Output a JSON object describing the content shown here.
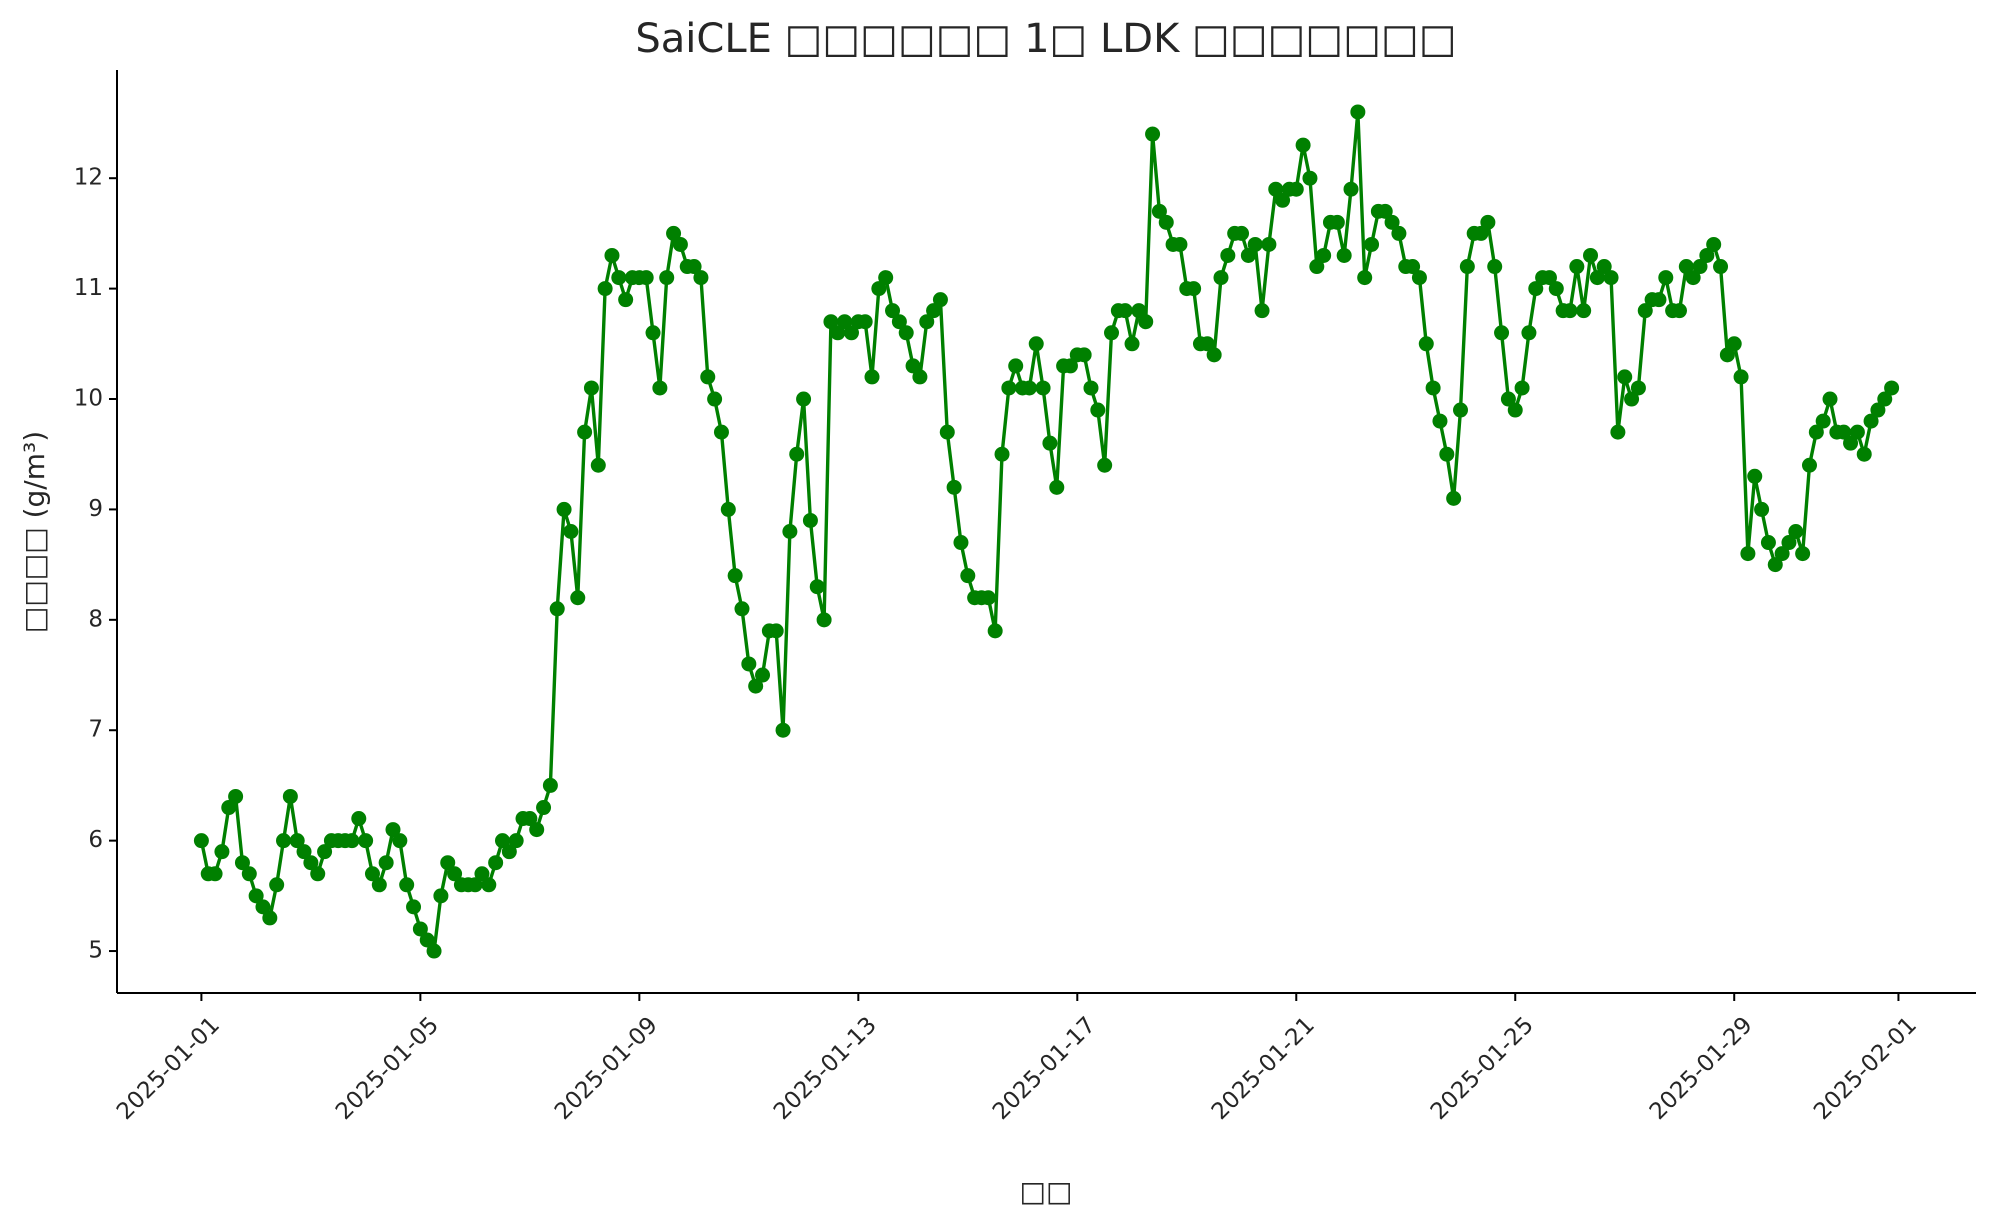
{
  "chart_data": {
    "type": "line",
    "title": "SaiCLE □□□□□□ 1□ LDK □□□□□□□",
    "xlabel": "□□",
    "ylabel": "□□□□ (g/m³)",
    "color": "#008000",
    "markers": true,
    "grid": false,
    "xlim": [
      "2024-12-30T11:00",
      "2025-02-02T10:00"
    ],
    "xticks": [
      "2025-01-01",
      "2025-01-05",
      "2025-01-09",
      "2025-01-13",
      "2025-01-17",
      "2025-01-21",
      "2025-01-25",
      "2025-01-29",
      "2025-02-01"
    ],
    "ylim": [
      4.62,
      12.98
    ],
    "yticks": [
      5,
      6,
      7,
      8,
      9,
      10,
      11,
      12
    ],
    "x": [
      "2025-01-01T00:00",
      "2025-01-01T03:00",
      "2025-01-01T06:00",
      "2025-01-01T09:00",
      "2025-01-01T12:00",
      "2025-01-01T15:00",
      "2025-01-01T18:00",
      "2025-01-01T21:00",
      "2025-01-02T00:00",
      "2025-01-02T03:00",
      "2025-01-02T06:00",
      "2025-01-02T09:00",
      "2025-01-02T12:00",
      "2025-01-02T15:00",
      "2025-01-02T18:00",
      "2025-01-02T21:00",
      "2025-01-03T00:00",
      "2025-01-03T03:00",
      "2025-01-03T06:00",
      "2025-01-03T09:00",
      "2025-01-03T12:00",
      "2025-01-03T15:00",
      "2025-01-03T18:00",
      "2025-01-03T21:00",
      "2025-01-04T00:00",
      "2025-01-04T03:00",
      "2025-01-04T06:00",
      "2025-01-04T09:00",
      "2025-01-04T12:00",
      "2025-01-04T15:00",
      "2025-01-04T18:00",
      "2025-01-04T21:00",
      "2025-01-05T00:00",
      "2025-01-05T03:00",
      "2025-01-05T06:00",
      "2025-01-05T09:00",
      "2025-01-05T12:00",
      "2025-01-05T15:00",
      "2025-01-05T18:00",
      "2025-01-05T21:00",
      "2025-01-06T00:00",
      "2025-01-06T03:00",
      "2025-01-06T06:00",
      "2025-01-06T09:00",
      "2025-01-06T12:00",
      "2025-01-06T15:00",
      "2025-01-06T18:00",
      "2025-01-06T21:00",
      "2025-01-07T00:00",
      "2025-01-07T03:00",
      "2025-01-07T06:00",
      "2025-01-07T09:00",
      "2025-01-07T12:00",
      "2025-01-07T15:00",
      "2025-01-07T18:00",
      "2025-01-07T21:00",
      "2025-01-08T00:00",
      "2025-01-08T03:00",
      "2025-01-08T06:00",
      "2025-01-08T09:00",
      "2025-01-08T12:00",
      "2025-01-08T15:00",
      "2025-01-08T18:00",
      "2025-01-08T21:00",
      "2025-01-09T00:00",
      "2025-01-09T03:00",
      "2025-01-09T06:00",
      "2025-01-09T09:00",
      "2025-01-09T12:00",
      "2025-01-09T15:00",
      "2025-01-09T18:00",
      "2025-01-09T21:00",
      "2025-01-10T00:00",
      "2025-01-10T03:00",
      "2025-01-10T06:00",
      "2025-01-10T09:00",
      "2025-01-10T12:00",
      "2025-01-10T15:00",
      "2025-01-10T18:00",
      "2025-01-10T21:00",
      "2025-01-11T00:00",
      "2025-01-11T03:00",
      "2025-01-11T06:00",
      "2025-01-11T09:00",
      "2025-01-11T12:00",
      "2025-01-11T15:00",
      "2025-01-11T18:00",
      "2025-01-11T21:00",
      "2025-01-12T00:00",
      "2025-01-12T03:00",
      "2025-01-12T06:00",
      "2025-01-12T09:00",
      "2025-01-12T12:00",
      "2025-01-12T15:00",
      "2025-01-12T18:00",
      "2025-01-12T21:00",
      "2025-01-13T00:00",
      "2025-01-13T03:00",
      "2025-01-13T06:00",
      "2025-01-13T09:00",
      "2025-01-13T12:00",
      "2025-01-13T15:00",
      "2025-01-13T18:00",
      "2025-01-13T21:00",
      "2025-01-14T00:00",
      "2025-01-14T03:00",
      "2025-01-14T06:00",
      "2025-01-14T09:00",
      "2025-01-14T12:00",
      "2025-01-14T15:00",
      "2025-01-14T18:00",
      "2025-01-14T21:00",
      "2025-01-15T00:00",
      "2025-01-15T03:00",
      "2025-01-15T06:00",
      "2025-01-15T09:00",
      "2025-01-15T12:00",
      "2025-01-15T15:00",
      "2025-01-15T18:00",
      "2025-01-15T21:00",
      "2025-01-16T00:00",
      "2025-01-16T03:00",
      "2025-01-16T06:00",
      "2025-01-16T09:00",
      "2025-01-16T12:00",
      "2025-01-16T15:00",
      "2025-01-16T18:00",
      "2025-01-16T21:00",
      "2025-01-17T00:00",
      "2025-01-17T03:00",
      "2025-01-17T06:00",
      "2025-01-17T09:00",
      "2025-01-17T12:00",
      "2025-01-17T15:00",
      "2025-01-17T18:00",
      "2025-01-17T21:00",
      "2025-01-18T00:00",
      "2025-01-18T03:00",
      "2025-01-18T06:00",
      "2025-01-18T09:00",
      "2025-01-18T12:00",
      "2025-01-18T15:00",
      "2025-01-18T18:00",
      "2025-01-18T21:00",
      "2025-01-19T00:00",
      "2025-01-19T03:00",
      "2025-01-19T06:00",
      "2025-01-19T09:00",
      "2025-01-19T12:00",
      "2025-01-19T15:00",
      "2025-01-19T18:00",
      "2025-01-19T21:00",
      "2025-01-20T00:00",
      "2025-01-20T03:00",
      "2025-01-20T06:00",
      "2025-01-20T09:00",
      "2025-01-20T12:00",
      "2025-01-20T15:00",
      "2025-01-20T18:00",
      "2025-01-20T21:00",
      "2025-01-21T00:00",
      "2025-01-21T03:00",
      "2025-01-21T06:00",
      "2025-01-21T09:00",
      "2025-01-21T12:00",
      "2025-01-21T15:00",
      "2025-01-21T18:00",
      "2025-01-21T21:00",
      "2025-01-22T00:00",
      "2025-01-22T03:00",
      "2025-01-22T06:00",
      "2025-01-22T09:00",
      "2025-01-22T12:00",
      "2025-01-22T15:00",
      "2025-01-22T18:00",
      "2025-01-22T21:00",
      "2025-01-23T00:00",
      "2025-01-23T03:00",
      "2025-01-23T06:00",
      "2025-01-23T09:00",
      "2025-01-23T12:00",
      "2025-01-23T15:00",
      "2025-01-23T18:00",
      "2025-01-23T21:00",
      "2025-01-24T00:00",
      "2025-01-24T03:00",
      "2025-01-24T06:00",
      "2025-01-24T09:00",
      "2025-01-24T12:00",
      "2025-01-24T15:00",
      "2025-01-24T18:00",
      "2025-01-24T21:00",
      "2025-01-25T00:00",
      "2025-01-25T03:00",
      "2025-01-25T06:00",
      "2025-01-25T09:00",
      "2025-01-25T12:00",
      "2025-01-25T15:00",
      "2025-01-25T18:00",
      "2025-01-25T21:00",
      "2025-01-26T00:00",
      "2025-01-26T03:00",
      "2025-01-26T06:00",
      "2025-01-26T09:00",
      "2025-01-26T12:00",
      "2025-01-26T15:00",
      "2025-01-26T18:00",
      "2025-01-26T21:00",
      "2025-01-27T00:00",
      "2025-01-27T03:00",
      "2025-01-27T06:00",
      "2025-01-27T09:00",
      "2025-01-27T12:00",
      "2025-01-27T15:00",
      "2025-01-27T18:00",
      "2025-01-27T21:00",
      "2025-01-28T00:00",
      "2025-01-28T03:00",
      "2025-01-28T06:00",
      "2025-01-28T09:00",
      "2025-01-28T12:00",
      "2025-01-28T15:00",
      "2025-01-28T18:00",
      "2025-01-28T21:00",
      "2025-01-29T00:00",
      "2025-01-29T03:00",
      "2025-01-29T06:00",
      "2025-01-29T09:00",
      "2025-01-29T12:00",
      "2025-01-29T15:00",
      "2025-01-29T18:00",
      "2025-01-29T21:00",
      "2025-01-30T00:00",
      "2025-01-30T03:00",
      "2025-01-30T06:00",
      "2025-01-30T09:00",
      "2025-01-30T12:00",
      "2025-01-30T15:00",
      "2025-01-30T18:00",
      "2025-01-30T21:00",
      "2025-01-31T00:00",
      "2025-01-31T03:00",
      "2025-01-31T06:00",
      "2025-01-31T09:00",
      "2025-01-31T12:00",
      "2025-01-31T15:00",
      "2025-01-31T18:00",
      "2025-01-31T21:00"
    ],
    "values": [
      6.0,
      5.7,
      5.7,
      5.9,
      6.3,
      6.4,
      5.8,
      5.7,
      5.5,
      5.4,
      5.3,
      5.6,
      6.0,
      6.4,
      6.0,
      5.9,
      5.8,
      5.7,
      5.9,
      6.0,
      6.0,
      6.0,
      6.0,
      6.2,
      6.0,
      5.7,
      5.6,
      5.8,
      6.1,
      6.0,
      5.6,
      5.4,
      5.2,
      5.1,
      5.0,
      5.5,
      5.8,
      5.7,
      5.6,
      5.6,
      5.6,
      5.7,
      5.6,
      5.8,
      6.0,
      5.9,
      6.0,
      6.2,
      6.2,
      6.1,
      6.3,
      6.5,
      8.1,
      9.0,
      8.8,
      8.2,
      9.7,
      10.1,
      9.4,
      11.0,
      11.3,
      11.1,
      10.9,
      11.1,
      11.1,
      11.1,
      10.6,
      10.1,
      11.1,
      11.5,
      11.4,
      11.2,
      11.2,
      11.1,
      10.2,
      10.0,
      9.7,
      9.0,
      8.4,
      8.1,
      7.6,
      7.4,
      7.5,
      7.9,
      7.9,
      7.0,
      8.8,
      9.5,
      10.0,
      8.9,
      8.3,
      8.0,
      10.7,
      10.6,
      10.7,
      10.6,
      10.7,
      10.7,
      10.2,
      11.0,
      11.1,
      10.8,
      10.7,
      10.6,
      10.3,
      10.2,
      10.7,
      10.8,
      10.9,
      9.7,
      9.2,
      8.7,
      8.4,
      8.2,
      8.2,
      8.2,
      7.9,
      9.5,
      10.1,
      10.3,
      10.1,
      10.1,
      10.5,
      10.1,
      9.6,
      9.2,
      10.3,
      10.3,
      10.4,
      10.4,
      10.1,
      9.9,
      9.4,
      10.6,
      10.8,
      10.8,
      10.5,
      10.8,
      10.7,
      12.4,
      11.7,
      11.6,
      11.4,
      11.4,
      11.0,
      11.0,
      10.5,
      10.5,
      10.4,
      11.1,
      11.3,
      11.5,
      11.5,
      11.3,
      11.4,
      10.8,
      11.4,
      11.9,
      11.8,
      11.9,
      11.9,
      12.3,
      12.0,
      11.2,
      11.3,
      11.6,
      11.6,
      11.3,
      11.9,
      12.6,
      11.1,
      11.4,
      11.7,
      11.7,
      11.6,
      11.5,
      11.2,
      11.2,
      11.1,
      10.5,
      10.1,
      9.8,
      9.5,
      9.1,
      9.9,
      11.2,
      11.5,
      11.5,
      11.6,
      11.2,
      10.6,
      10.0,
      9.9,
      10.1,
      10.6,
      11.0,
      11.1,
      11.1,
      11.0,
      10.8,
      10.8,
      11.2,
      10.8,
      11.3,
      11.1,
      11.2,
      11.1,
      9.7,
      10.2,
      10.0,
      10.1,
      10.8,
      10.9,
      10.9,
      11.1,
      10.8,
      10.8,
      11.2,
      11.1,
      11.2,
      11.3,
      11.4,
      11.2,
      10.4,
      10.5,
      10.2,
      8.6,
      9.3,
      9.0,
      8.7,
      8.5,
      8.6,
      8.7,
      8.8,
      8.6,
      9.4,
      9.7,
      9.8,
      10.0,
      9.7,
      9.7,
      9.6,
      9.7,
      9.5,
      9.8,
      9.9,
      10.0,
      10.1
    ]
  }
}
